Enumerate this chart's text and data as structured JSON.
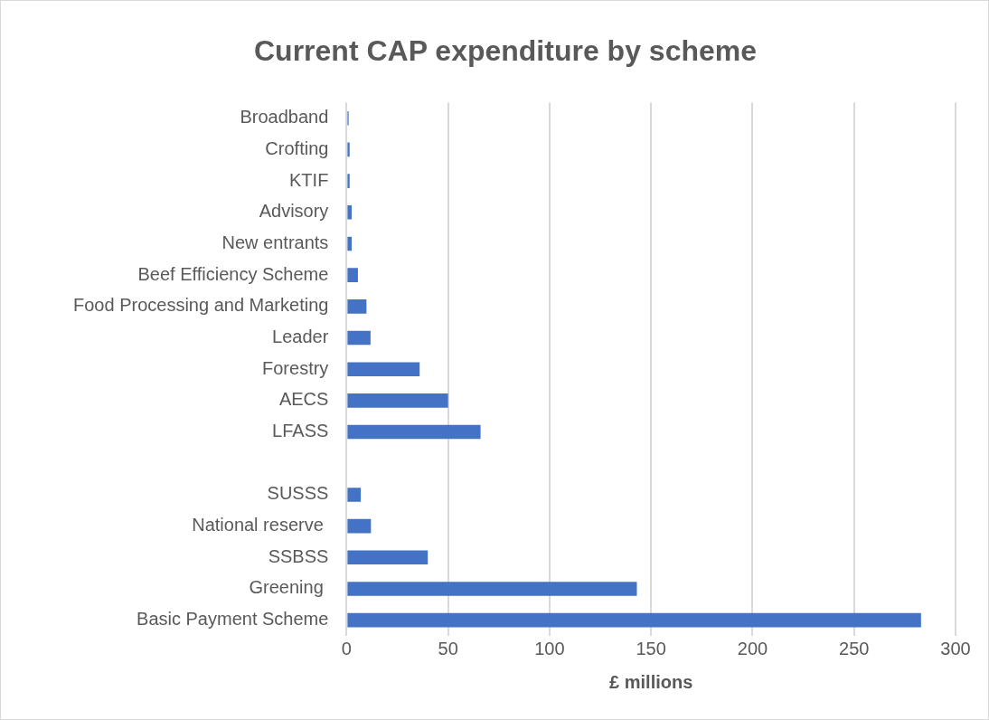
{
  "chart_data": {
    "type": "bar",
    "orientation": "horizontal",
    "title": "Current CAP expenditure by scheme",
    "xlabel": "£ millions",
    "categories": [
      "Broadband",
      "Crofting",
      "KTIF",
      "Advisory",
      "New entrants",
      "Beef Efficiency Scheme",
      "Food Processing and Marketing",
      "Leader",
      "Forestry",
      "AECS",
      "LFASS",
      null,
      "SUSSS",
      "National reserve ",
      "SSBSS",
      "Greening ",
      "Basic Payment Scheme"
    ],
    "values": [
      1,
      1.5,
      1.5,
      2.5,
      2.5,
      5.6,
      9.8,
      11.8,
      36,
      50,
      66,
      null,
      7,
      12,
      40,
      143,
      283
    ],
    "color": "#4472c4",
    "xlim": [
      0,
      300
    ],
    "xticks": [
      0,
      50,
      100,
      150,
      200,
      250,
      300
    ],
    "grid": "x",
    "legend": false
  }
}
